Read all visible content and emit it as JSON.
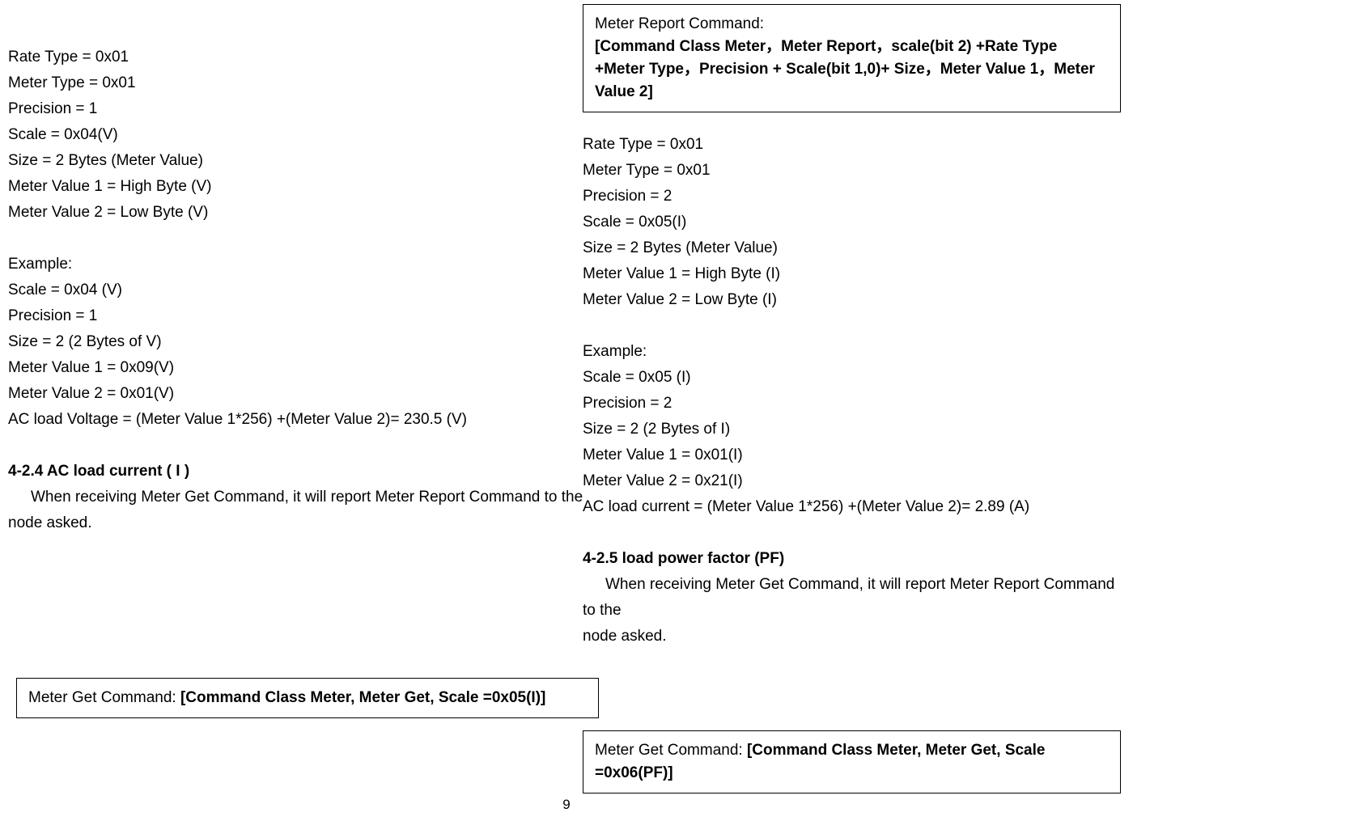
{
  "left": {
    "params": [
      "Rate Type = 0x01",
      "Meter Type = 0x01",
      "Precision = 1",
      "Scale = 0x04(V)",
      "Size = 2 Bytes (Meter Value)",
      "Meter Value 1 = High Byte (V)",
      "Meter Value 2 = Low Byte (V)"
    ],
    "example_label": "Example:",
    "example": [
      "Scale = 0x04 (V)",
      "Precision = 1",
      "Size = 2 (2 Bytes of  V)",
      "Meter Value 1 =  0x09(V)",
      "Meter Value 2 =  0x01(V)",
      "AC load Voltage =  (Meter Value 1*256) +(Meter Value 2)= 230.5 (V)"
    ],
    "heading": "4-2.4 AC load current ( I )",
    "para1": "When receiving Meter Get Command, it will report Meter Report Command to the",
    "para2": "node asked.",
    "box_label": "Meter Get Command: ",
    "box_content": "[Command Class Meter, Meter Get, Scale =0x05(I)]"
  },
  "right": {
    "report_box_label": "Meter Report Command:",
    "report_box_content": "[Command Class Meter，Meter Report，scale(bit 2) +Rate Type +Meter Type，Precision + Scale(bit 1,0)+ Size，Meter Value 1，Meter Value 2]",
    "params": [
      "Rate Type = 0x01",
      "Meter Type = 0x01",
      "Precision = 2",
      "Scale = 0x05(I)",
      "Size = 2 Bytes (Meter Value)",
      "Meter Value 1 = High Byte (I)",
      "Meter Value 2 = Low Byte (I)"
    ],
    "example_label": "Example:",
    "example": [
      "Scale = 0x05 (I)",
      "Precision = 2",
      "Size = 2 (2 Bytes of I)",
      "Meter Value 1 =  0x01(I)",
      "Meter Value 2 =  0x21(I)",
      "AC load current =  (Meter Value 1*256) +(Meter Value 2)= 2.89 (A)"
    ],
    "heading": "4-2.5 load power factor (PF)",
    "para1": "When receiving Meter Get Command, it will report Meter Report Command to the",
    "para2": "node asked.",
    "box_label": "Meter Get Command: ",
    "box_content": "[Command Class Meter, Meter Get, Scale =0x06(PF)]"
  },
  "page_number": "9"
}
